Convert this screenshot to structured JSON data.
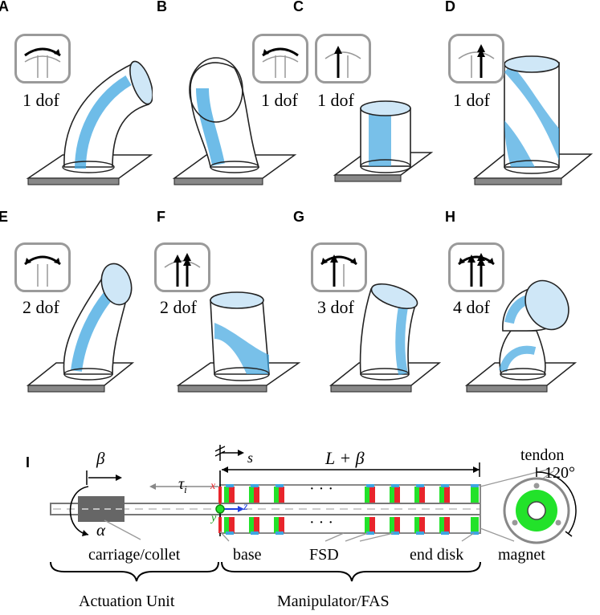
{
  "panels": [
    {
      "letter": "A",
      "dof": "1 dof",
      "icon": "bend-right-icon"
    },
    {
      "letter": "B",
      "dof": "1 dof",
      "icon": "bend-left-icon"
    },
    {
      "letter": "C",
      "dof": "1 dof",
      "icon": "extend-icon"
    },
    {
      "letter": "D",
      "dof": "1 dof",
      "icon": "twist-extend-icon"
    },
    {
      "letter": "E",
      "dof": "2 dof",
      "icon": "bend-both-icon"
    },
    {
      "letter": "F",
      "dof": "2 dof",
      "icon": "double-extend-icon"
    },
    {
      "letter": "G",
      "dof": "3 dof",
      "icon": "bend-extend-icon"
    },
    {
      "letter": "H",
      "dof": "4 dof",
      "icon": "bend-double-extend-icon"
    }
  ],
  "schematic": {
    "label": "I",
    "beta": "β",
    "alpha": "α",
    "tau": "τ",
    "tau_sub": "i",
    "s": "s",
    "length": "L + β",
    "dots": "· · ·",
    "angle": "120°",
    "x": "x",
    "y": "y",
    "z": "z",
    "carriage": "carriage/collet",
    "base": "base",
    "fsd": "FSD",
    "end_disk": "end disk",
    "tendon": "tendon",
    "magnet": "magnet",
    "actuation_unit": "Actuation Unit",
    "manipulator": "Manipulator/FAS"
  },
  "colors": {
    "blue": "#3ea5e0",
    "red": "#e8252b",
    "green": "#22e22a",
    "axis_blue": "#1f3fe0",
    "gray": "#8a8a8a"
  }
}
